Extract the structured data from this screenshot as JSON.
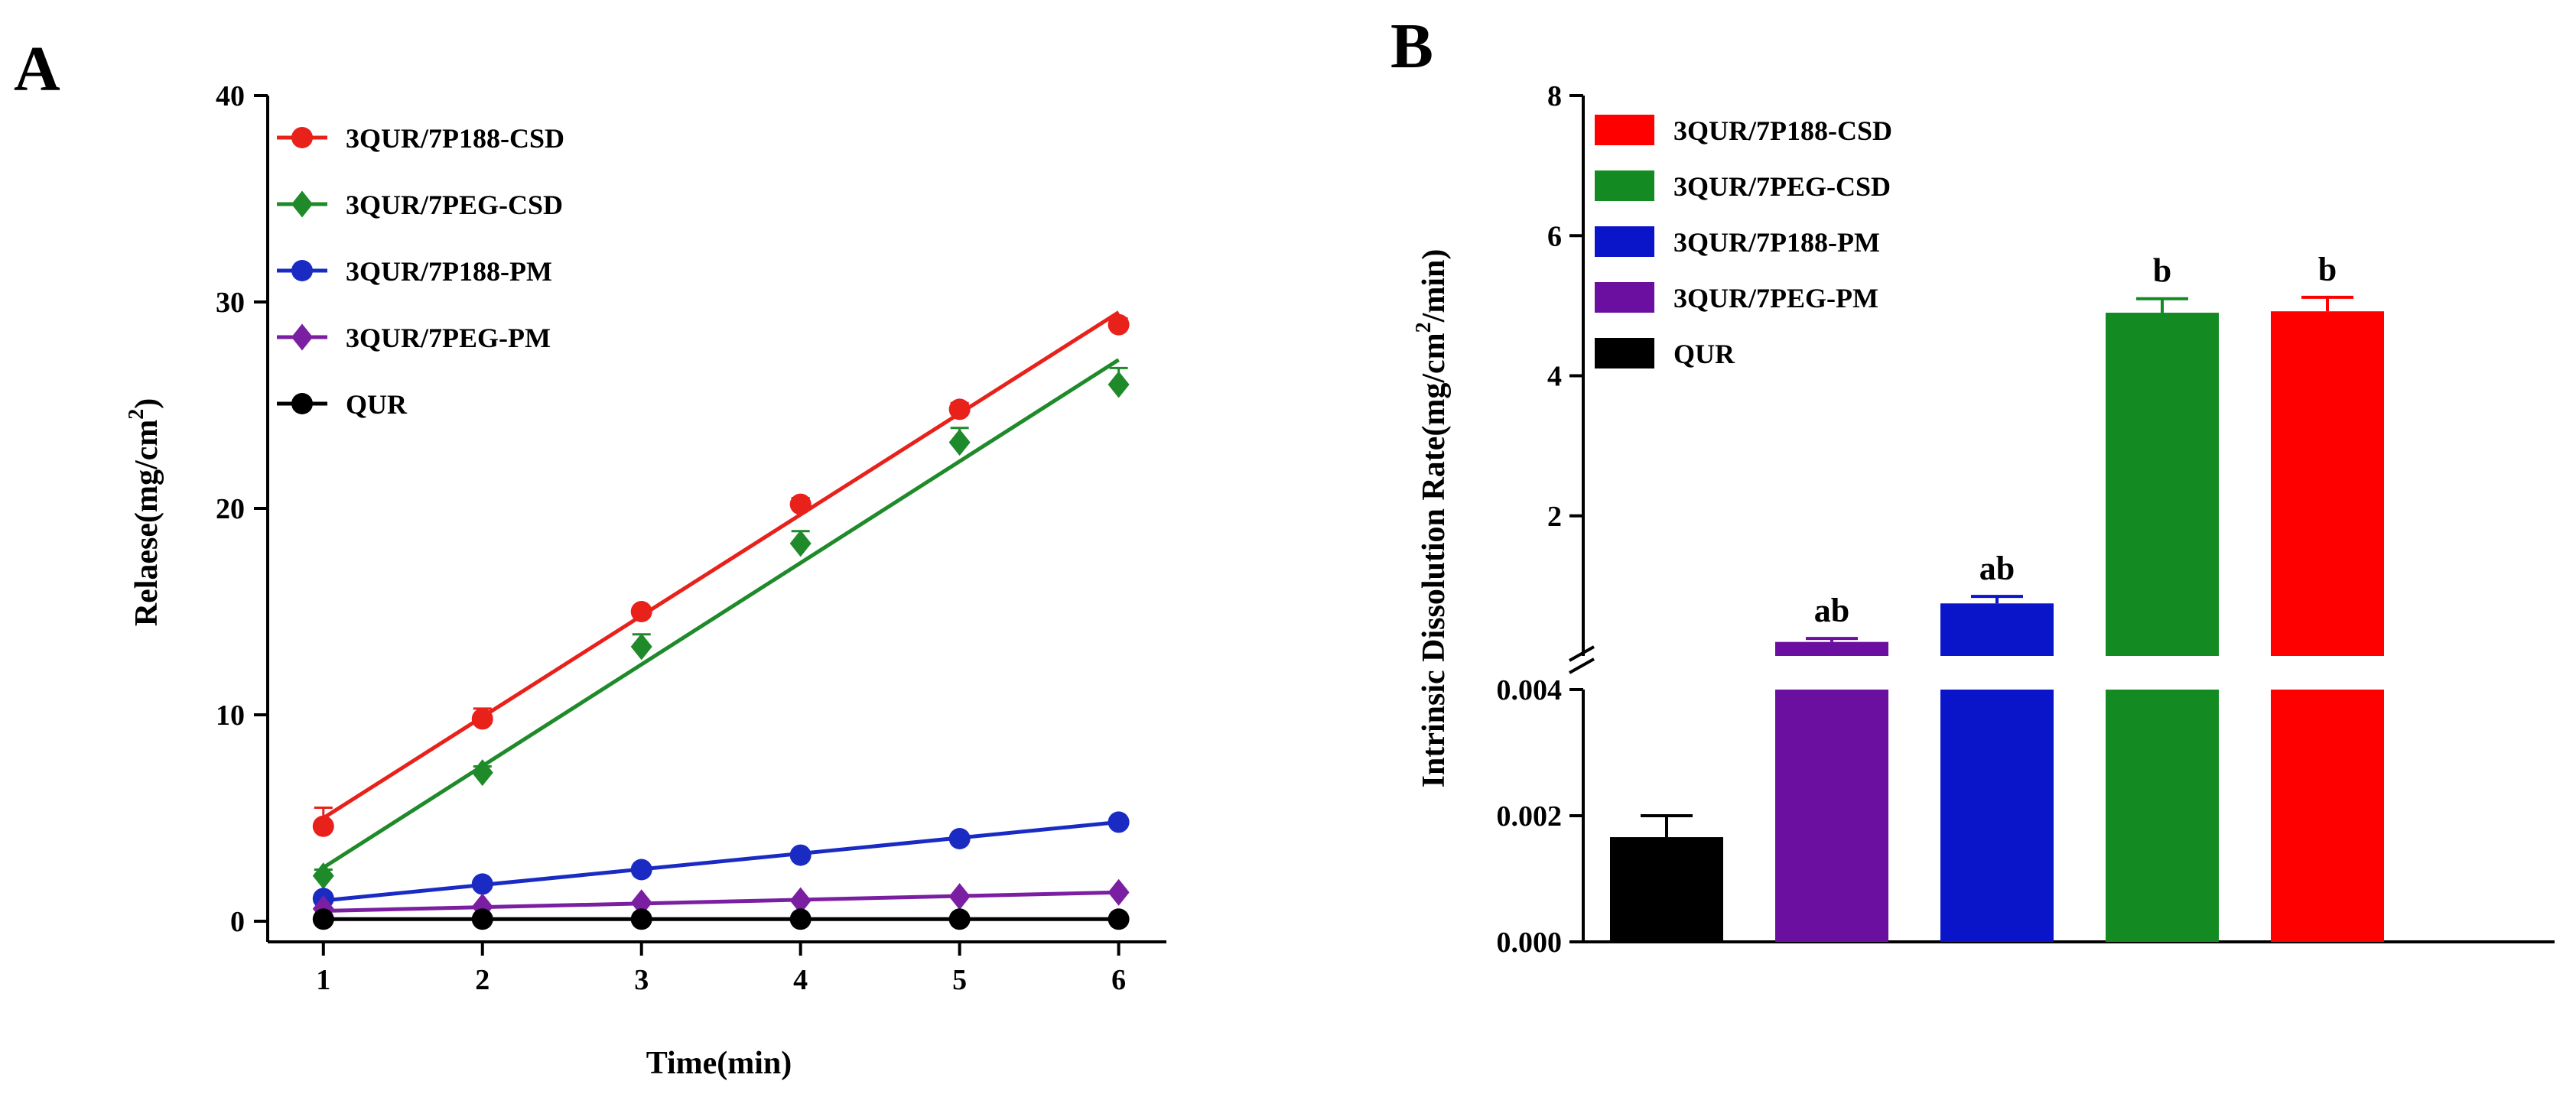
{
  "panel_labels": {
    "a": "A",
    "b": "B"
  },
  "chart_data": [
    {
      "type": "line",
      "panel": "A",
      "xlabel": "Time(min)",
      "ylabel": "Relaese(mg/cm²)",
      "x_ticks": [
        "1",
        "2",
        "3",
        "4",
        "5",
        "6"
      ],
      "y_ticks": [
        "0",
        "10",
        "20",
        "30",
        "40"
      ],
      "xlim": [
        0.65,
        6.3
      ],
      "ylim": [
        -1,
        40
      ],
      "x": [
        1,
        2,
        3,
        4,
        5,
        6
      ],
      "series": [
        {
          "name": "3QUR/7P188-CSD",
          "color": "#e8211b",
          "marker": "circle",
          "values": [
            4.6,
            9.8,
            15.0,
            20.2,
            24.8,
            28.9
          ],
          "errors": [
            0.9,
            0.5,
            0.2,
            0.3,
            0.3,
            0.3
          ],
          "fit": [
            5.0,
            29.5
          ]
        },
        {
          "name": "3QUR/7PEG-CSD",
          "color": "#1f8a2a",
          "marker": "diamond",
          "values": [
            2.2,
            7.2,
            13.3,
            18.3,
            23.2,
            26.0
          ],
          "errors": [
            0.3,
            0.3,
            0.6,
            0.6,
            0.7,
            0.8
          ],
          "fit": [
            2.6,
            27.2
          ]
        },
        {
          "name": "3QUR/7P188-PM",
          "color": "#1a2bc4",
          "marker": "circle",
          "values": [
            1.1,
            1.8,
            2.5,
            3.2,
            4.0,
            4.8
          ],
          "errors": [
            0.1,
            0.1,
            0.1,
            0.1,
            0.1,
            0.1
          ],
          "fit": [
            1.0,
            4.8
          ]
        },
        {
          "name": "3QUR/7PEG-PM",
          "color": "#7b1fa2",
          "marker": "diamond",
          "values": [
            0.6,
            0.7,
            0.9,
            1.0,
            1.2,
            1.4
          ],
          "errors": [
            0.05,
            0.05,
            0.05,
            0.05,
            0.05,
            0.05
          ],
          "fit": [
            0.5,
            1.4
          ]
        },
        {
          "name": "QUR",
          "color": "#000000",
          "marker": "circle",
          "values": [
            0.1,
            0.1,
            0.1,
            0.1,
            0.1,
            0.1
          ],
          "errors": [
            0.02,
            0.02,
            0.02,
            0.02,
            0.02,
            0.02
          ],
          "fit": [
            0.1,
            0.1
          ]
        }
      ]
    },
    {
      "type": "bar",
      "panel": "B",
      "ylabel_main": "Intrinsic Dissolution Rate(mg/cm",
      "ylabel_sup": "2",
      "ylabel_tail": "/min)",
      "axis_break": true,
      "y_ticks_upper": [
        "2",
        "4",
        "6",
        "8"
      ],
      "y_ticks_lower": [
        "0.000",
        "0.002",
        "0.004"
      ],
      "ylim_upper": [
        0,
        8
      ],
      "ylim_lower": [
        0,
        0.004
      ],
      "legend": [
        {
          "name": "3QUR/7P188-CSD",
          "color": "#ff0000"
        },
        {
          "name": "3QUR/7PEG-CSD",
          "color": "#138a22"
        },
        {
          "name": "3QUR/7P188-PM",
          "color": "#0a14c8"
        },
        {
          "name": "3QUR/7PEG-PM",
          "color": "#6a0fa0"
        },
        {
          "name": "QUR",
          "color": "#000000"
        }
      ],
      "bars": [
        {
          "name": "QUR",
          "color": "#000000",
          "segment": "lower",
          "value": 0.00166,
          "error": 0.00034,
          "label": ""
        },
        {
          "name": "3QUR/7PEG-PM",
          "color": "#6a0fa0",
          "segment": "upper",
          "value": 0.2,
          "error": 0.05,
          "label": "ab"
        },
        {
          "name": "3QUR/7P188-PM",
          "color": "#0a14c8",
          "segment": "upper",
          "value": 0.75,
          "error": 0.1,
          "label": "ab"
        },
        {
          "name": "3QUR/7PEG-CSD",
          "color": "#138a22",
          "segment": "upper",
          "value": 4.9,
          "error": 0.2,
          "label": "b"
        },
        {
          "name": "3QUR/7P188-CSD",
          "color": "#ff0000",
          "segment": "upper",
          "value": 4.92,
          "error": 0.2,
          "label": "b"
        }
      ]
    }
  ]
}
